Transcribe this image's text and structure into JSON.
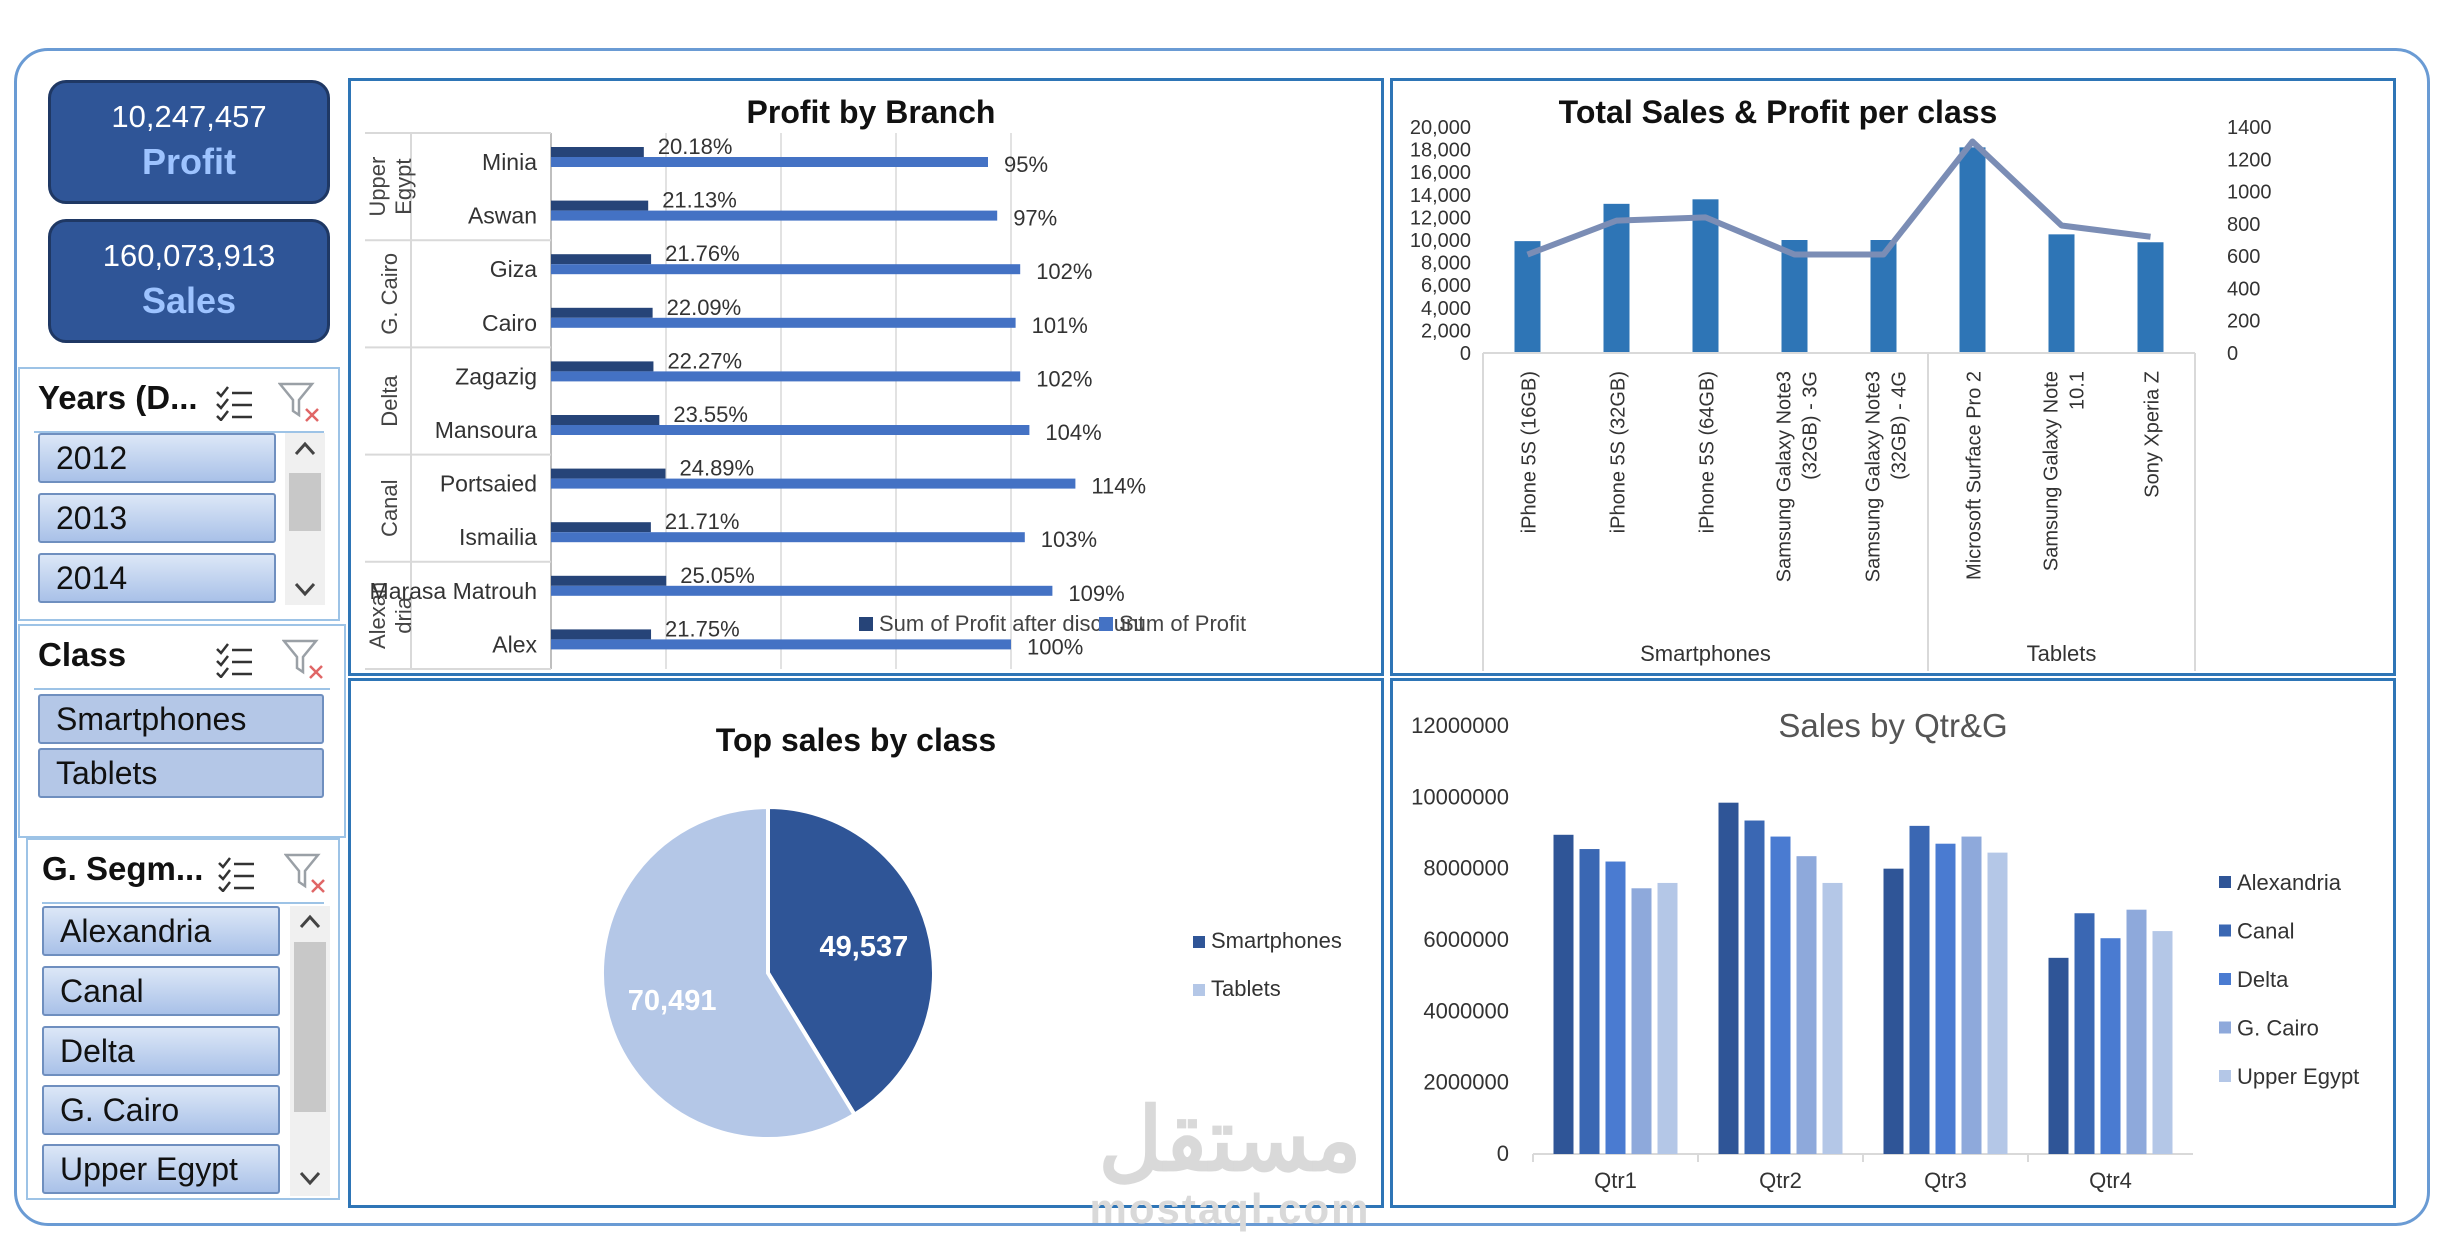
{
  "kpis": {
    "profit": {
      "value": "10,247,457",
      "label": "Profit"
    },
    "sales": {
      "value": "160,073,913",
      "label": "Sales"
    }
  },
  "slicers": {
    "years": {
      "title": "Years (D...",
      "items": [
        "2012",
        "2013",
        "2014"
      ]
    },
    "class": {
      "title": "Class",
      "items": [
        "Smartphones",
        "Tablets"
      ]
    },
    "segment": {
      "title": "G. Segm...",
      "items": [
        "Alexandria",
        "Canal",
        "Delta",
        "G. Cairo",
        "Upper Egypt"
      ]
    }
  },
  "icons": {
    "multi_select": "multi-select-icon",
    "clear_filter": "clear-filter-icon",
    "scroll_up": "chevron-up-icon",
    "scroll_down": "chevron-down-icon"
  },
  "colors": {
    "dark_blue": "#264478",
    "blue": "#4472c4",
    "mid_blue": "#2e75b6",
    "light_blue": "#b4c7e7",
    "grey_line": "#7b8db5"
  },
  "watermark": {
    "arabic": "مستقل",
    "latin": "mostaql.com"
  },
  "chart_data": [
    {
      "id": "profit_by_branch",
      "type": "bar",
      "title": "Profit by Branch",
      "orientation": "horizontal",
      "groups": [
        {
          "name": "Upper Egypt",
          "label_lines": [
            "Upper",
            "Egypt"
          ],
          "categories": [
            "Minia",
            "Aswan"
          ]
        },
        {
          "name": "G. Cairo",
          "label_lines": [
            "G. Cairo"
          ],
          "categories": [
            "Giza",
            "Cairo"
          ]
        },
        {
          "name": "Delta",
          "label_lines": [
            "Delta"
          ],
          "categories": [
            "Zagazig",
            "Mansoura"
          ]
        },
        {
          "name": "Canal",
          "label_lines": [
            "Canal"
          ],
          "categories": [
            "Portsaied",
            "Ismailia"
          ]
        },
        {
          "name": "Alexandria",
          "label_lines": [
            "Alexan",
            "dria"
          ],
          "categories": [
            "Marasa Matrouh",
            "Alex"
          ]
        }
      ],
      "series": [
        {
          "name": "Sum of Profit after discount",
          "values": [
            20.18,
            21.13,
            21.76,
            22.09,
            22.27,
            23.55,
            24.89,
            21.71,
            25.05,
            21.75
          ],
          "labels": [
            "20.18%",
            "21.13%",
            "21.76%",
            "22.09%",
            "22.27%",
            "23.55%",
            "24.89%",
            "21.71%",
            "25.05%",
            "21.75%"
          ]
        },
        {
          "name": "Sum of Profit",
          "values": [
            95,
            97,
            102,
            101,
            102,
            104,
            114,
            103,
            109,
            100
          ],
          "labels": [
            "95%",
            "97%",
            "102%",
            "101%",
            "102%",
            "104%",
            "114%",
            "103%",
            "109%",
            "100%"
          ]
        }
      ],
      "legend": "bottom-right"
    },
    {
      "id": "sales_profit_per_class",
      "type": "bar",
      "title": "Total Sales & Profit per class",
      "groups": [
        {
          "name": "Smartphones",
          "categories": [
            "iPhone 5S (16GB)",
            "iPhone 5S (32GB)",
            "iPhone 5S (64GB)",
            "Samsung Galaxy Note3 (32GB) - 3G",
            "Samsung Galaxy Note3 (32GB) - 4G"
          ]
        },
        {
          "name": "Tablets",
          "categories": [
            "Microsoft Surface Pro 2",
            "Samsung Galaxy Note 10.1",
            "Sony Xperia Z"
          ]
        }
      ],
      "category_label_lines": [
        [
          "iPhone 5S (16GB)"
        ],
        [
          "iPhone 5S (32GB)"
        ],
        [
          "iPhone 5S (64GB)"
        ],
        [
          "Samsung Galaxy Note3",
          "(32GB) - 3G"
        ],
        [
          "Samsung Galaxy Note3",
          "(32GB) - 4G"
        ],
        [
          "Microsoft Surface Pro 2"
        ],
        [
          "Samsung Galaxy Note",
          "10.1"
        ],
        [
          "Sony Xperia Z"
        ]
      ],
      "series": [
        {
          "type": "bar",
          "axis": "left",
          "values": [
            9900,
            13200,
            13600,
            10000,
            10000,
            18200,
            10500,
            9800
          ]
        },
        {
          "type": "line",
          "axis": "right",
          "values": [
            610,
            820,
            840,
            610,
            610,
            1310,
            790,
            720
          ]
        }
      ],
      "y_left": {
        "ylim": [
          0,
          20000
        ],
        "ticks": [
          "20,000",
          "18,000",
          "16,000",
          "14,000",
          "12,000",
          "10,000",
          "8,000",
          "6,000",
          "4,000",
          "2,000",
          "0"
        ]
      },
      "y_right": {
        "ylim": [
          0,
          1400
        ],
        "ticks": [
          "1400",
          "1200",
          "1000",
          "800",
          "600",
          "400",
          "200",
          "0"
        ]
      }
    },
    {
      "id": "top_sales_by_class",
      "type": "pie",
      "title": "Top sales by class",
      "slices": [
        {
          "name": "Smartphones",
          "value": 49537,
          "label": "49,537"
        },
        {
          "name": "Tablets",
          "value": 70491,
          "label": "70,491"
        }
      ],
      "legend": "right"
    },
    {
      "id": "sales_by_qtr",
      "type": "bar",
      "title": "Sales by Qtr&G",
      "categories": [
        "Qtr1",
        "Qtr2",
        "Qtr3",
        "Qtr4"
      ],
      "series": [
        {
          "name": "Alexandria",
          "values": [
            8950000,
            9850000,
            8000000,
            5500000
          ]
        },
        {
          "name": "Canal",
          "values": [
            8550000,
            9350000,
            9200000,
            6750000
          ]
        },
        {
          "name": "Delta",
          "values": [
            8200000,
            8900000,
            8700000,
            6050000
          ]
        },
        {
          "name": "G. Cairo",
          "values": [
            7450000,
            8350000,
            8900000,
            6850000
          ]
        },
        {
          "name": "Upper Egypt",
          "values": [
            7600000,
            7600000,
            8450000,
            6250000
          ]
        }
      ],
      "ylim": [
        0,
        12000000
      ],
      "yticks": [
        "12000000",
        "10000000",
        "8000000",
        "6000000",
        "4000000",
        "2000000",
        "0"
      ],
      "legend": "right"
    }
  ]
}
